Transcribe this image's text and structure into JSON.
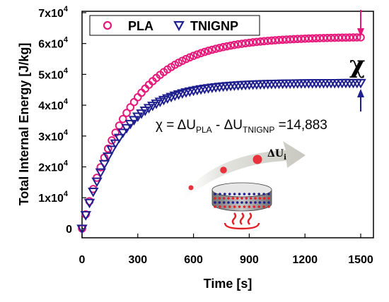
{
  "chart_data": {
    "type": "scatter",
    "xlabel": "Time [s]",
    "ylabel": "Total Internal Energy [J/kg]",
    "xlim": [
      0,
      1500
    ],
    "ylim": [
      -3000,
      70000
    ],
    "x_ticks": [
      "0",
      "300",
      "600",
      "900",
      "1200",
      "1500"
    ],
    "x_tick_values": [
      0,
      300,
      600,
      900,
      1200,
      1500
    ],
    "y_ticks": [
      {
        "value": 0,
        "mant": "0",
        "exp": ""
      },
      {
        "value": 10000,
        "mant": "1x10",
        "exp": "4"
      },
      {
        "value": 20000,
        "mant": "2x10",
        "exp": "4"
      },
      {
        "value": 30000,
        "mant": "3x10",
        "exp": "4"
      },
      {
        "value": 40000,
        "mant": "4x10",
        "exp": "4"
      },
      {
        "value": 50000,
        "mant": "5x10",
        "exp": "4"
      },
      {
        "value": 60000,
        "mant": "6x10",
        "exp": "4"
      },
      {
        "value": 70000,
        "mant": "7x10",
        "exp": "4"
      }
    ],
    "legend_position": "top-left",
    "series": [
      {
        "name": "PLA",
        "marker": "circle",
        "color": "#e6197a",
        "plateau": 62200,
        "tau": 260,
        "x": [
          0,
          20,
          40,
          60,
          80,
          100,
          120,
          140,
          160,
          180,
          200,
          220,
          240,
          260,
          280,
          300,
          320,
          340,
          360,
          380,
          400,
          420,
          440,
          460,
          480,
          500,
          520,
          540,
          560,
          580,
          600,
          620,
          640,
          660,
          680,
          700,
          720,
          740,
          760,
          780,
          800,
          820,
          840,
          860,
          880,
          900,
          920,
          940,
          960,
          980,
          1000,
          1020,
          1040,
          1060,
          1080,
          1100,
          1120,
          1140,
          1160,
          1180,
          1200,
          1220,
          1240,
          1260,
          1280,
          1300,
          1320,
          1340,
          1360,
          1380,
          1400,
          1420,
          1440,
          1460,
          1480,
          1500
        ]
      },
      {
        "name": "TNIGNP",
        "marker": "triangle-down",
        "color": "#1f1f8f",
        "plateau": 47300,
        "tau": 205,
        "x": [
          0,
          20,
          40,
          60,
          80,
          100,
          120,
          140,
          160,
          180,
          200,
          220,
          240,
          260,
          280,
          300,
          320,
          340,
          360,
          380,
          400,
          420,
          440,
          460,
          480,
          500,
          520,
          540,
          560,
          580,
          600,
          620,
          640,
          660,
          680,
          700,
          720,
          740,
          760,
          780,
          800,
          820,
          840,
          860,
          880,
          900,
          920,
          940,
          960,
          980,
          1000,
          1020,
          1040,
          1060,
          1080,
          1100,
          1120,
          1140,
          1160,
          1180,
          1200,
          1220,
          1240,
          1260,
          1280,
          1300,
          1320,
          1340,
          1360,
          1380,
          1400,
          1420,
          1440,
          1460,
          1480,
          1500
        ]
      }
    ],
    "annotation": {
      "chi_symbol": "χ",
      "eq_prefix": "χ = ΔU",
      "eq_sub1": "PLA",
      "eq_mid": " - ΔU",
      "eq_sub2": "TNIGNP",
      "eq_suffix": " =14,883",
      "delta_u": "ΔU",
      "delta_u_sub": "i"
    }
  }
}
